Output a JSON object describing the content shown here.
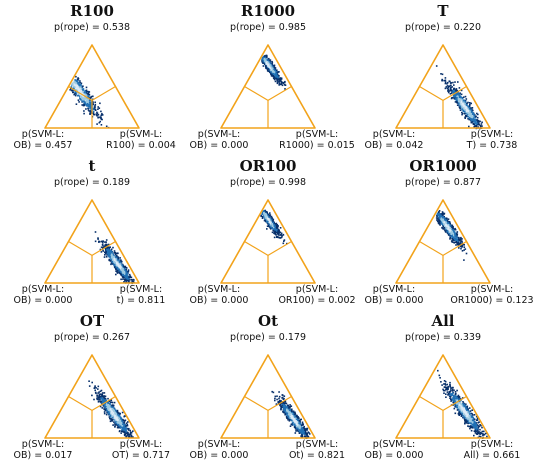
{
  "chart_data": [
    {
      "type": "scatter",
      "title": "R100",
      "p_rope": "p(rope) = 0.538",
      "left_label": [
        "p(SVM-L:",
        "OB) = 0.457"
      ],
      "right_label": [
        "p(SVM-L:",
        "R100) = 0.004"
      ],
      "probabilities": {
        "rope": 0.538,
        "left": 0.457,
        "right": 0.004
      }
    },
    {
      "type": "scatter",
      "title": "R1000",
      "p_rope": "p(rope) = 0.985",
      "left_label": [
        "p(SVM-L:",
        "OB) = 0.000"
      ],
      "right_label": [
        "p(SVM-L:",
        "R1000) = 0.015"
      ],
      "probabilities": {
        "rope": 0.985,
        "left": 0.0,
        "right": 0.015
      }
    },
    {
      "type": "scatter",
      "title": "T",
      "p_rope": "p(rope) = 0.220",
      "left_label": [
        "p(SVM-L:",
        "OB) = 0.042"
      ],
      "right_label": [
        "p(SVM-L:",
        "T) = 0.738"
      ],
      "probabilities": {
        "rope": 0.22,
        "left": 0.042,
        "right": 0.738
      }
    },
    {
      "type": "scatter",
      "title": "t",
      "p_rope": "p(rope) = 0.189",
      "left_label": [
        "p(SVM-L:",
        "OB) = 0.000"
      ],
      "right_label": [
        "p(SVM-L:",
        "t) = 0.811"
      ],
      "probabilities": {
        "rope": 0.189,
        "left": 0.0,
        "right": 0.811
      }
    },
    {
      "type": "scatter",
      "title": "OR100",
      "p_rope": "p(rope) = 0.998",
      "left_label": [
        "p(SVM-L:",
        "OB) = 0.000"
      ],
      "right_label": [
        "p(SVM-L:",
        "OR100) = 0.002"
      ],
      "probabilities": {
        "rope": 0.998,
        "left": 0.0,
        "right": 0.002
      }
    },
    {
      "type": "scatter",
      "title": "OR1000",
      "p_rope": "p(rope) = 0.877",
      "left_label": [
        "p(SVM-L:",
        "OB) = 0.000"
      ],
      "right_label": [
        "p(SVM-L:",
        "OR1000) = 0.123"
      ],
      "probabilities": {
        "rope": 0.877,
        "left": 0.0,
        "right": 0.123
      }
    },
    {
      "type": "scatter",
      "title": "OT",
      "p_rope": "p(rope) = 0.267",
      "left_label": [
        "p(SVM-L:",
        "OB) = 0.017"
      ],
      "right_label": [
        "p(SVM-L:",
        "OT) = 0.717"
      ],
      "probabilities": {
        "rope": 0.267,
        "left": 0.017,
        "right": 0.717
      }
    },
    {
      "type": "scatter",
      "title": "Ot",
      "p_rope": "p(rope) = 0.179",
      "left_label": [
        "p(SVM-L:",
        "OB) = 0.000"
      ],
      "right_label": [
        "p(SVM-L:",
        "Ot) = 0.821"
      ],
      "probabilities": {
        "rope": 0.179,
        "left": 0.0,
        "right": 0.821
      }
    },
    {
      "type": "scatter",
      "title": "All",
      "p_rope": "p(rope) = 0.339",
      "left_label": [
        "p(SVM-L:",
        "OB) = 0.000"
      ],
      "right_label": [
        "p(SVM-L:",
        "All) = 0.661"
      ],
      "probabilities": {
        "rope": 0.339,
        "left": 0.0,
        "right": 0.661
      }
    }
  ],
  "colors": {
    "triangle": "#f2a31b",
    "cloud_dark": "#08306b",
    "cloud_mid": "#2171b5",
    "cloud_light": "#9ecae1",
    "cloud_core": "#deebf7"
  }
}
